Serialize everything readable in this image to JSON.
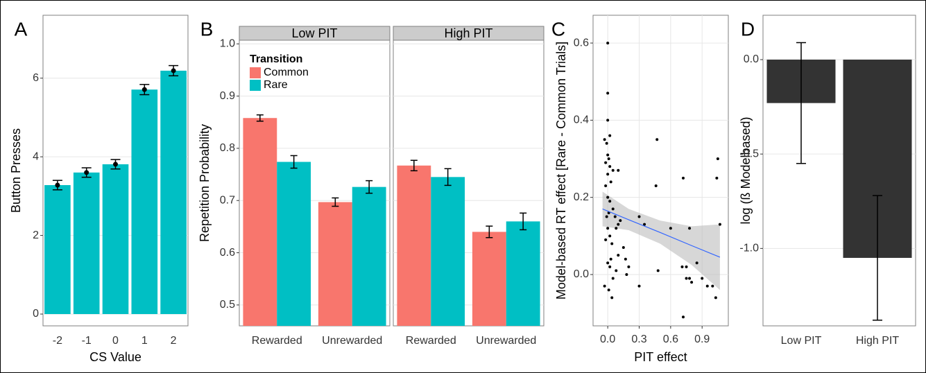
{
  "chart_data": [
    {
      "type": "bar",
      "panel_label": "A",
      "categories": [
        "-2",
        "-1",
        "0",
        "1",
        "2"
      ],
      "values": [
        3.28,
        3.6,
        3.81,
        5.71,
        6.19
      ],
      "errors": [
        0.12,
        0.12,
        0.12,
        0.13,
        0.13
      ],
      "color": "#00bfc4",
      "point_color": "#000000",
      "ylim": [
        -0.3,
        7.6
      ],
      "yticks": [
        0,
        2,
        4,
        6
      ],
      "grid": true,
      "xlabel": "CS Value",
      "ylabel": "Button Presses"
    },
    {
      "type": "grouped_bar",
      "panel_label": "B",
      "facets": [
        "Low PIT",
        "High PIT"
      ],
      "categories": [
        "Rewarded",
        "Unrewarded",
        "Rewarded",
        "Unrewarded"
      ],
      "legend_title": "Transition",
      "series": [
        {
          "name": "Common",
          "color": "#f8766d",
          "values": [
            0.858,
            0.697,
            0.767,
            0.64
          ],
          "errors": [
            0.006,
            0.008,
            0.01,
            0.011
          ]
        },
        {
          "name": "Rare",
          "color": "#00bfc4",
          "values": [
            0.774,
            0.726,
            0.745,
            0.66
          ],
          "errors": [
            0.012,
            0.012,
            0.016,
            0.016
          ]
        }
      ],
      "ylim": [
        0.46,
        1.007
      ],
      "yticks": [
        0.5,
        0.6,
        0.7,
        0.8,
        0.9,
        {
          "value": 1,
          "label": "1.0"
        }
      ],
      "grid": true,
      "ylabel": "Repetition Probability"
    },
    {
      "type": "scatter",
      "panel_label": "C",
      "x": [
        0.0,
        0.0,
        0.0,
        0.02,
        -0.03,
        -0.01,
        0.0,
        0.01,
        -0.02,
        0.02,
        0.05,
        0.1,
        0.0,
        0.03,
        -0.02,
        0.0,
        0.02,
        0.01,
        -0.01,
        0.05,
        0.07,
        0.1,
        0.08,
        0.12,
        0.0,
        0.02,
        -0.02,
        0.04,
        0.1,
        0.03,
        0.0,
        0.02,
        0.08,
        0.18,
        -0.03,
        0.01,
        0.04,
        0.05,
        0.15,
        0.17,
        0.3,
        0.35,
        0.3,
        0.47,
        0.46,
        0.48,
        0.6,
        0.72,
        0.75,
        0.78,
        0.72,
        0.75,
        0.78,
        0.85,
        0.9,
        0.95,
        1.05,
        1.04,
        1.07,
        1.03,
        1.0,
        0.8,
        0.71,
        0.2
      ],
      "y": [
        0.6,
        0.47,
        0.4,
        0.36,
        0.35,
        0.34,
        0.31,
        0.3,
        0.29,
        0.28,
        0.27,
        0.27,
        0.26,
        0.24,
        0.23,
        0.2,
        0.19,
        0.16,
        0.15,
        0.17,
        0.15,
        0.13,
        0.12,
        0.14,
        0.12,
        0.1,
        0.09,
        0.08,
        0.05,
        0.04,
        0.03,
        0.02,
        0.01,
        0.0,
        -0.03,
        -0.04,
        -0.06,
        -0.01,
        0.07,
        0.04,
        0.15,
        0.13,
        -0.03,
        0.35,
        0.23,
        0.01,
        0.12,
        0.25,
        0.02,
        0.12,
        -0.11,
        -0.01,
        -0.01,
        0.03,
        -0.01,
        -0.03,
        0.3,
        0.25,
        0.13,
        -0.06,
        -0.03,
        -0.02,
        0.02,
        0.02
      ],
      "color": "#000000",
      "fit": {
        "x": [
          -0.05,
          0.2,
          0.5,
          0.8,
          1.07
        ],
        "y": [
          0.17,
          0.142,
          0.109,
          0.075,
          0.045
        ],
        "lower": [
          0.125,
          0.115,
          0.08,
          0.025,
          -0.04
        ],
        "upper": [
          0.215,
          0.17,
          0.14,
          0.125,
          0.13
        ],
        "color": "#3366ff",
        "band_color": "#bdbdbd"
      },
      "xlim": [
        -0.14,
        1.15
      ],
      "ylim": [
        -0.133,
        0.672
      ],
      "xticks": [
        {
          "value": 0,
          "label": "0.0"
        },
        0.3,
        0.6,
        0.9
      ],
      "yticks": [
        {
          "value": 0,
          "label": "0.0"
        },
        0.2,
        0.4,
        0.6
      ],
      "grid": true,
      "xlabel": "PIT effect",
      "ylabel": "Model-based RT effect [Rare - Common Trials]"
    },
    {
      "type": "bar",
      "panel_label": "D",
      "categories": [
        "Low PIT",
        "High PIT"
      ],
      "values": [
        -0.23,
        -1.05
      ],
      "errors": [
        0.32,
        0.33
      ],
      "color": "#333333",
      "ylim": [
        -1.41,
        0.235
      ],
      "yticks": [
        {
          "value": 0,
          "label": "0.0"
        },
        {
          "value": -0.5,
          "label": "-0.5"
        },
        {
          "value": -1,
          "label": "-1.0"
        }
      ],
      "grid": true,
      "ylabel": "log (ß Modelbased)"
    }
  ]
}
